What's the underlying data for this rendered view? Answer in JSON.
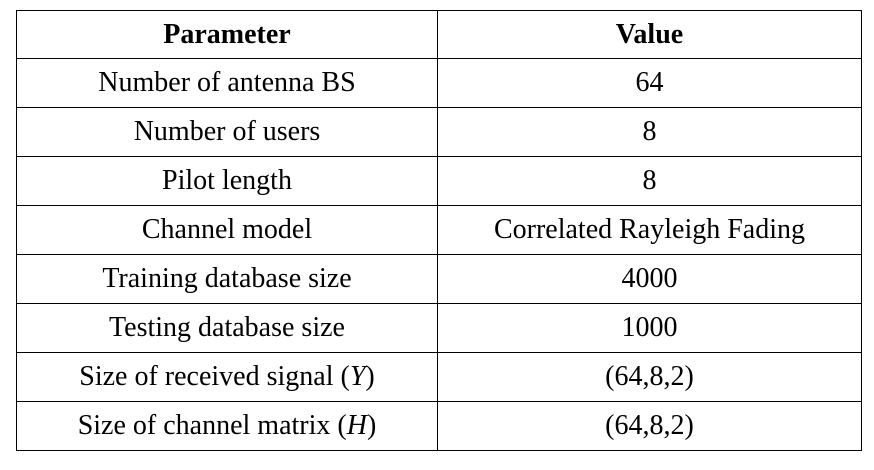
{
  "table": {
    "headers": [
      "Parameter",
      "Value"
    ],
    "rows": [
      {
        "parameter": "Number of antenna BS",
        "value": "64"
      },
      {
        "parameter": "Number of users",
        "value": "8"
      },
      {
        "parameter": "Pilot length",
        "value": "8"
      },
      {
        "parameter": "Channel model",
        "value": "Correlated Rayleigh Fading"
      },
      {
        "parameter": "Training database size",
        "value": "4000"
      },
      {
        "parameter": "Testing database size",
        "value": "1000"
      },
      {
        "parameter": "Size of received signal (",
        "symbol": "Y",
        "value": "(64,8,2)"
      },
      {
        "parameter": "Size of channel matrix (",
        "symbol": "H",
        "value": "(64,8,2)"
      }
    ]
  }
}
